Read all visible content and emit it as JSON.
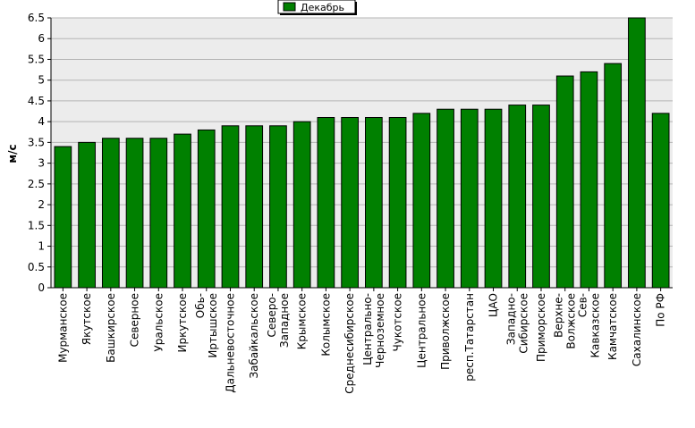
{
  "chart_data": {
    "type": "bar",
    "title": "",
    "xlabel": "",
    "ylabel": "м/с",
    "ylim": [
      0,
      6.5
    ],
    "ytick_step": 0.5,
    "ytick_labels": [
      "0",
      "0.5",
      "1",
      "1.5",
      "2",
      "2.5",
      "3",
      "3.5",
      "4",
      "4.5",
      "5",
      "5.5",
      "6",
      "6.5"
    ],
    "grid": true,
    "legend_position": "top-center",
    "categories": [
      [
        "Мурманское"
      ],
      [
        "Якутское"
      ],
      [
        "Башкирское"
      ],
      [
        "Северное"
      ],
      [
        "Уральское"
      ],
      [
        "Иркутское"
      ],
      [
        "Обь-",
        "Иртышское"
      ],
      [
        "Дальневосточное"
      ],
      [
        "Забайкальское"
      ],
      [
        "Северо-",
        "Западное"
      ],
      [
        "Крымское"
      ],
      [
        "Колымское"
      ],
      [
        "Среднесибирское"
      ],
      [
        "Центрально-",
        "Черноземное"
      ],
      [
        "Чукотское"
      ],
      [
        "Центральное"
      ],
      [
        "Приволжское"
      ],
      [
        "респ.Татарстан"
      ],
      [
        "ЦАО"
      ],
      [
        "Западно-",
        "Сибирское"
      ],
      [
        "Приморское"
      ],
      [
        "Верхне-",
        "Волжское"
      ],
      [
        "Сев-",
        "Кавказское"
      ],
      [
        "Камчатское"
      ],
      [
        "Сахалинское"
      ],
      [
        "По РФ"
      ]
    ],
    "series": [
      {
        "name": "Декабрь",
        "color": "#008000",
        "values": [
          3.4,
          3.5,
          3.6,
          3.6,
          3.6,
          3.7,
          3.8,
          3.9,
          3.9,
          3.9,
          4.0,
          4.1,
          4.1,
          4.1,
          4.1,
          4.2,
          4.3,
          4.3,
          4.3,
          4.4,
          4.4,
          5.1,
          5.2,
          5.4,
          6.5,
          4.2
        ]
      }
    ]
  }
}
